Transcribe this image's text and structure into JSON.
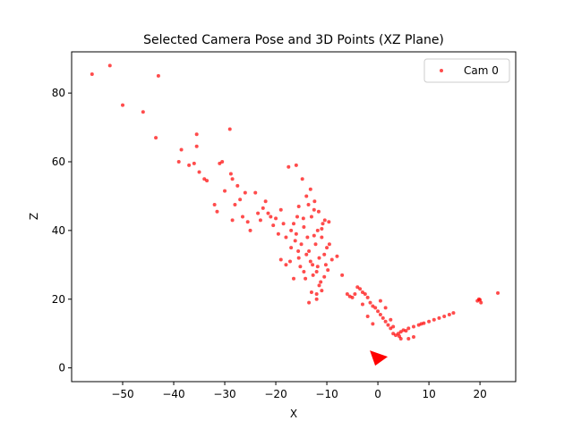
{
  "chart_data": {
    "type": "scatter",
    "title": "Selected Camera Pose and 3D Points (XZ Plane)",
    "xlabel": "X",
    "ylabel": "Z",
    "xlim": [
      -60,
      27
    ],
    "ylim": [
      -4,
      92
    ],
    "xticks": [
      -50,
      -40,
      -30,
      -20,
      -10,
      0,
      10,
      20
    ],
    "yticks": [
      0,
      20,
      40,
      60,
      80
    ],
    "grid": false,
    "legend_position": "top-right",
    "colors": {
      "points": "#ff0000",
      "camera": "#ff0000"
    },
    "series": [
      {
        "name": "Cam 0",
        "points": [
          [
            -56,
            85.5
          ],
          [
            -52.5,
            88
          ],
          [
            -50,
            76.5
          ],
          [
            -46,
            74.5
          ],
          [
            -43,
            85
          ],
          [
            -43.5,
            67
          ],
          [
            -39,
            60
          ],
          [
            -38.5,
            63.5
          ],
          [
            -37,
            59
          ],
          [
            -36,
            59.5
          ],
          [
            -35.5,
            68
          ],
          [
            -35.5,
            64.5
          ],
          [
            -35,
            57
          ],
          [
            -34,
            55
          ],
          [
            -33.5,
            54.5
          ],
          [
            -32,
            47.5
          ],
          [
            -31.5,
            45.5
          ],
          [
            -31,
            59.5
          ],
          [
            -30.5,
            60
          ],
          [
            -30,
            51.5
          ],
          [
            -29,
            69.5
          ],
          [
            -28.8,
            56.5
          ],
          [
            -28.5,
            55
          ],
          [
            -28,
            47.5
          ],
          [
            -28.5,
            43
          ],
          [
            -27.5,
            53
          ],
          [
            -27,
            49
          ],
          [
            -26.5,
            44
          ],
          [
            -26,
            51
          ],
          [
            -25.5,
            42.5
          ],
          [
            -25,
            40
          ],
          [
            -24,
            51
          ],
          [
            -23.5,
            45
          ],
          [
            -23,
            43
          ],
          [
            -22.5,
            46.5
          ],
          [
            -22,
            48.5
          ],
          [
            -21.5,
            45
          ],
          [
            -21,
            44
          ],
          [
            -20.5,
            41.5
          ],
          [
            -20,
            43.5
          ],
          [
            -19.5,
            39
          ],
          [
            -19,
            46
          ],
          [
            -18.5,
            42
          ],
          [
            -18,
            38
          ],
          [
            -17.5,
            58.5
          ],
          [
            -17,
            40
          ],
          [
            -16.5,
            42
          ],
          [
            -16,
            59
          ],
          [
            -15.8,
            44
          ],
          [
            -15.5,
            47
          ],
          [
            -15,
            36
          ],
          [
            -14.8,
            55
          ],
          [
            -14.5,
            41
          ],
          [
            -14,
            50
          ],
          [
            -13.8,
            38
          ],
          [
            -13.5,
            34
          ],
          [
            -13.2,
            52
          ],
          [
            -13,
            44
          ],
          [
            -12.8,
            30
          ],
          [
            -12.5,
            46
          ],
          [
            -12.2,
            36
          ],
          [
            -12,
            28
          ],
          [
            -11.8,
            40
          ],
          [
            -11.5,
            32
          ],
          [
            -11.2,
            25
          ],
          [
            -11,
            38
          ],
          [
            -10.8,
            42
          ],
          [
            -10.5,
            33
          ],
          [
            -10.2,
            30
          ],
          [
            -10,
            35
          ],
          [
            -9.5,
            36
          ],
          [
            -9,
            31.5
          ],
          [
            -8,
            32.5
          ],
          [
            -7,
            27
          ],
          [
            -6,
            21.5
          ],
          [
            -5.5,
            20.8
          ],
          [
            -5,
            20.5
          ],
          [
            -4.5,
            21.5
          ],
          [
            -4,
            23.5
          ],
          [
            -3.5,
            23
          ],
          [
            -3,
            22
          ],
          [
            -2.5,
            21.5
          ],
          [
            -2,
            20.5
          ],
          [
            -1.5,
            19
          ],
          [
            -1,
            18
          ],
          [
            -0.5,
            17.5
          ],
          [
            0,
            16.5
          ],
          [
            0.5,
            15.5
          ],
          [
            1,
            14.5
          ],
          [
            1.5,
            13.5
          ],
          [
            2,
            12.5
          ],
          [
            2.5,
            11.5
          ],
          [
            3,
            10
          ],
          [
            3.5,
            9.5
          ],
          [
            4,
            10
          ],
          [
            4.5,
            10.5
          ],
          [
            5,
            11
          ],
          [
            6,
            11.5
          ],
          [
            7,
            12
          ],
          [
            8,
            12.5
          ],
          [
            9,
            13
          ],
          [
            10,
            13.5
          ],
          [
            11,
            14
          ],
          [
            12,
            14.5
          ],
          [
            13,
            15
          ],
          [
            14,
            15.5
          ],
          [
            14.8,
            16
          ],
          [
            6,
            8.5
          ],
          [
            7,
            9
          ],
          [
            4.5,
            8.5
          ],
          [
            19.5,
            19.5
          ],
          [
            20,
            19.8
          ],
          [
            20.2,
            19
          ],
          [
            19.8,
            20
          ],
          [
            23.5,
            21.8
          ],
          [
            -14.5,
            28
          ],
          [
            -15.5,
            32
          ],
          [
            -16.5,
            26
          ],
          [
            -17,
            35
          ],
          [
            -18,
            30
          ],
          [
            -19,
            31.5
          ],
          [
            -13,
            22
          ],
          [
            -12,
            20
          ],
          [
            -11.5,
            24
          ],
          [
            -10.5,
            26.5
          ],
          [
            -9.8,
            28.5
          ],
          [
            -16,
            39
          ],
          [
            -14,
            33
          ],
          [
            -12.5,
            38.5
          ],
          [
            -11.8,
            29.5
          ],
          [
            -13.2,
            31
          ],
          [
            -12.7,
            27
          ],
          [
            -14.2,
            26
          ],
          [
            -15.2,
            29.5
          ],
          [
            -16.2,
            37
          ],
          [
            -17.2,
            31
          ],
          [
            -11,
            40.5
          ],
          [
            -10.4,
            43
          ],
          [
            -9.6,
            42.5
          ],
          [
            -13.6,
            47.5
          ],
          [
            -12.4,
            48.5
          ],
          [
            -11.6,
            45.5
          ],
          [
            -14.6,
            43.5
          ],
          [
            -15.6,
            34
          ],
          [
            -12,
            21.5
          ],
          [
            -13.5,
            19
          ],
          [
            -11,
            22.5
          ],
          [
            -2,
            15
          ],
          [
            -1,
            12.8
          ],
          [
            1.5,
            17.5
          ],
          [
            0.5,
            19.5
          ],
          [
            -3,
            18.5
          ],
          [
            2.5,
            14
          ],
          [
            3,
            12
          ],
          [
            4.2,
            9.2
          ],
          [
            5.5,
            10.8
          ],
          [
            8.5,
            12.8
          ]
        ]
      }
    ],
    "camera": {
      "label": "camera pose marker",
      "x": 0,
      "z": 3
    }
  }
}
